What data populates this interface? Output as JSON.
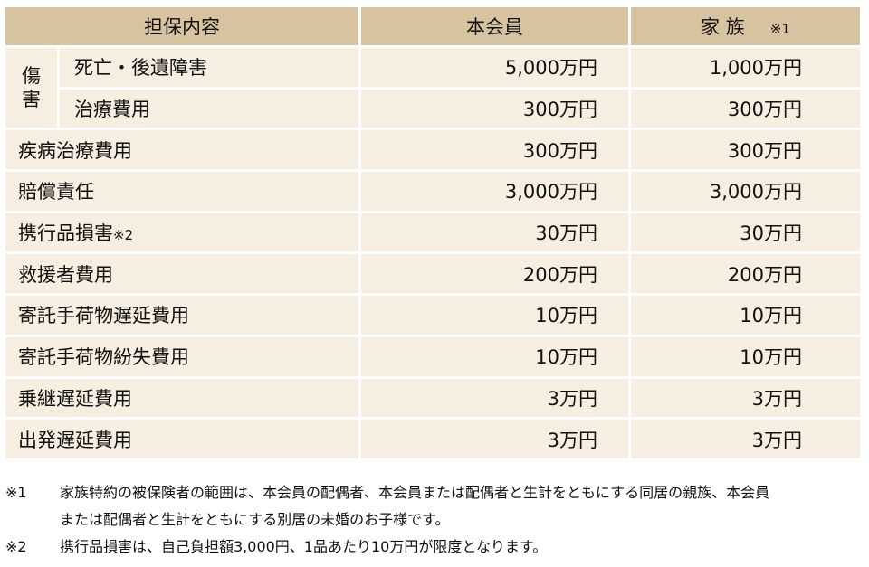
{
  "header": {
    "col_item": "担保内容",
    "col_member": "本会員",
    "col_family": "家 族",
    "col_family_note": "※1"
  },
  "injury_group": {
    "char1": "傷",
    "char2": "害"
  },
  "rows": [
    {
      "label": "死亡・後遺障害",
      "member": "5,000万円",
      "family": "1,000万円"
    },
    {
      "label": "治療費用",
      "member": "300万円",
      "family": "300万円"
    },
    {
      "label": "疾病治療費用",
      "member": "300万円",
      "family": "300万円"
    },
    {
      "label": "賠償責任",
      "member": "3,000万円",
      "family": "3,000万円"
    },
    {
      "label": "携行品損害",
      "label_note": "※2",
      "member": "30万円",
      "family": "30万円"
    },
    {
      "label": "救援者費用",
      "member": "200万円",
      "family": "200万円"
    },
    {
      "label": "寄託手荷物遅延費用",
      "member": "10万円",
      "family": "10万円"
    },
    {
      "label": "寄託手荷物紛失費用",
      "member": "10万円",
      "family": "10万円"
    },
    {
      "label": "乗継遅延費用",
      "member": "3万円",
      "family": "3万円"
    },
    {
      "label": "出発遅延費用",
      "member": "3万円",
      "family": "3万円"
    }
  ],
  "notes": [
    {
      "mark": "※1",
      "lines": [
        "家族特約の被保険者の範囲は、本会員の配偶者、本会員または配偶者と生計をともにする同居の親族、本会員",
        "または配偶者と生計をともにする別居の未婚のお子様です。"
      ]
    },
    {
      "mark": "※2",
      "lines": [
        "携行品損害は、自己負担額3,000円、1品あたり10万円が限度となります。"
      ]
    }
  ],
  "colors": {
    "header_bg": "#d8c3a0",
    "row_bg": "#f6eee0"
  }
}
